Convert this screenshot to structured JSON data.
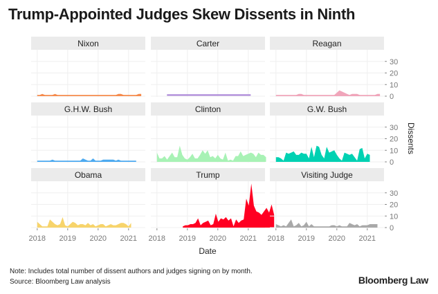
{
  "title": "Trump-Appointed Judges Skew Dissents in Ninth",
  "note": "Note: Includes total number of dissent authors and judges signing on by month.",
  "source": "Source: Bloomberg Law analysis",
  "logo": "Bloomberg Law",
  "chart_data": {
    "type": "area",
    "title": "Trump-Appointed Judges Skew Dissents in Ninth",
    "xlabel": "Date",
    "ylabel": "Dissents",
    "xlim": [
      2017.8,
      2021.55
    ],
    "ylim": [
      0,
      40
    ],
    "x_ticks": [
      2018,
      2019,
      2020,
      2021
    ],
    "y_ticks": [
      0,
      10,
      20,
      30
    ],
    "step": "monthly",
    "panels": [
      {
        "name": "Nixon",
        "color": "#f58a4c",
        "start": 2018.0,
        "values": [
          1,
          1,
          2,
          1,
          1,
          1,
          1,
          2,
          1,
          1,
          1,
          1,
          1,
          1,
          1,
          1,
          1,
          1,
          1,
          1,
          1,
          1,
          1,
          1,
          1,
          1,
          1,
          1,
          1,
          1,
          1,
          1,
          2,
          2,
          1,
          1,
          1,
          1,
          1,
          1,
          2,
          2
        ]
      },
      {
        "name": "Carter",
        "color": "#a67fd6",
        "start": 2018.33,
        "values": [
          1,
          1,
          1,
          1,
          1,
          1,
          1,
          1,
          1,
          1,
          1,
          1,
          1,
          1,
          1,
          1,
          1,
          1,
          1,
          1,
          1,
          1,
          1,
          1,
          1,
          1,
          1,
          1,
          1,
          1,
          1,
          1,
          1,
          1
        ]
      },
      {
        "name": "Reagan",
        "color": "#f0a5ba",
        "start": 2018.0,
        "values": [
          1,
          1,
          1,
          1,
          1,
          1,
          1,
          1,
          1,
          2,
          2,
          1,
          1,
          1,
          1,
          1,
          1,
          1,
          1,
          1,
          1,
          1,
          1,
          1,
          3,
          5,
          4,
          3,
          2,
          1,
          2,
          2,
          2,
          1,
          1,
          1,
          1,
          1,
          1,
          1,
          2,
          2
        ]
      },
      {
        "name": "G.H.W. Bush",
        "color": "#4daaf0",
        "start": 2018.0,
        "values": [
          1,
          1,
          1,
          1,
          1,
          1,
          2,
          1,
          1,
          1,
          1,
          1,
          1,
          1,
          1,
          1,
          1,
          1,
          3,
          2,
          1,
          1,
          3,
          1,
          1,
          1,
          2,
          2,
          2,
          2,
          2,
          1,
          2,
          1,
          1,
          1,
          1,
          1,
          1,
          1
        ]
      },
      {
        "name": "Clinton",
        "color": "#a8f2b5",
        "start": 2018.0,
        "values": [
          8,
          3,
          3,
          5,
          2,
          5,
          8,
          4,
          4,
          14,
          6,
          3,
          2,
          4,
          7,
          3,
          3,
          6,
          10,
          7,
          10,
          4,
          5,
          3,
          6,
          3,
          2,
          8,
          1,
          2,
          1,
          5,
          5,
          9,
          5,
          6,
          7,
          8,
          7,
          4,
          8,
          6,
          6,
          4
        ]
      },
      {
        "name": "G.W. Bush",
        "color": "#00d1b2",
        "start": 2018.0,
        "values": [
          4,
          4,
          3,
          1,
          8,
          7,
          8,
          9,
          6,
          6,
          8,
          7,
          7,
          3,
          13,
          4,
          14,
          13,
          6,
          3,
          13,
          8,
          9,
          10,
          6,
          3,
          1,
          8,
          7,
          6,
          7,
          4,
          1,
          11,
          12,
          3,
          7,
          6
        ]
      },
      {
        "name": "Obama",
        "color": "#f7d46b",
        "start": 2018.0,
        "values": [
          5,
          3,
          1,
          1,
          1,
          7,
          5,
          3,
          2,
          3,
          9,
          2,
          1,
          3,
          5,
          4,
          2,
          3,
          3,
          2,
          4,
          2,
          3,
          1,
          2,
          3,
          3,
          1,
          2,
          3,
          2,
          2,
          3,
          4,
          4,
          3,
          1,
          4
        ]
      },
      {
        "name": "Trump",
        "color": "#ff0022",
        "start": 2018.85,
        "values": [
          1,
          2,
          2,
          3,
          3,
          4,
          8,
          2,
          4,
          5,
          6,
          2,
          3,
          12,
          5,
          8,
          7,
          9,
          6,
          8,
          1,
          7,
          4,
          6,
          7,
          25,
          19,
          38,
          19,
          14,
          13,
          11,
          14,
          17,
          13,
          20,
          11
        ]
      },
      {
        "name": "Visiting Judge",
        "color": "#a9a9a9",
        "start": 2018.0,
        "values": [
          3,
          2,
          1,
          2,
          1,
          4,
          7,
          1,
          2,
          4,
          1,
          2,
          5,
          1,
          3,
          1,
          1,
          1,
          1,
          1,
          1,
          1,
          2,
          2,
          1,
          2,
          1,
          1,
          1,
          4,
          3,
          2,
          3,
          1,
          2,
          2,
          2,
          3,
          3,
          3,
          3
        ]
      }
    ]
  }
}
